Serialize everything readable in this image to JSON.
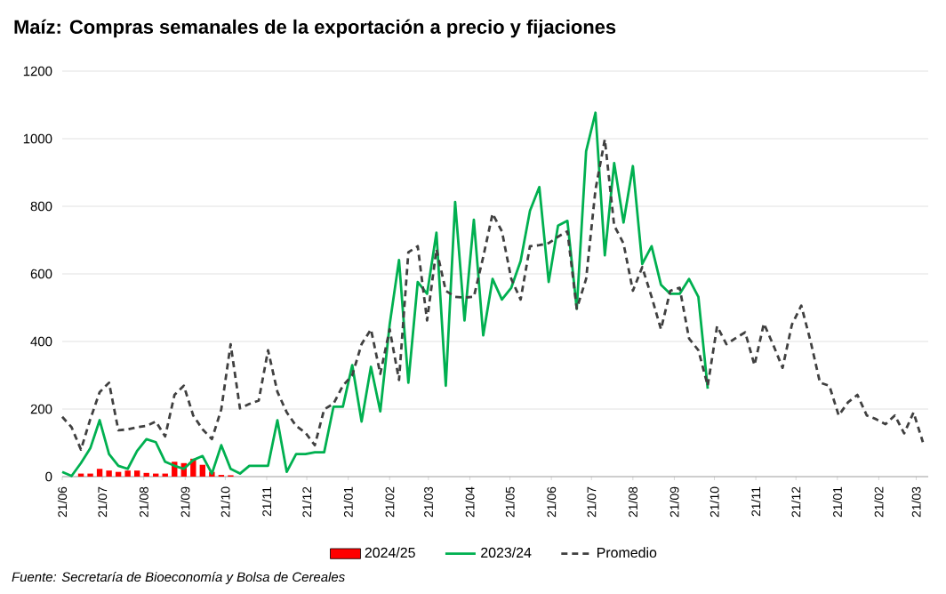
{
  "chart_data": {
    "type": "line",
    "title": "Maíz: Compras semanales de la exportación a precio y fijaciones",
    "annotations": [
      "Fuente: Secretaría de Bioeconomía y Bolsa de Cereales"
    ],
    "x": [
      "2023-06-21",
      "2023-06-28",
      "2023-07-05",
      "2023-07-12",
      "2023-07-19",
      "2023-07-26",
      "2023-08-02",
      "2023-08-09",
      "2023-08-16",
      "2023-08-23",
      "2023-08-30",
      "2023-09-06",
      "2023-09-13",
      "2023-09-20",
      "2023-09-27",
      "2023-10-04",
      "2023-10-11",
      "2023-10-18",
      "2023-10-25",
      "2023-11-01",
      "2023-11-08",
      "2023-11-15",
      "2023-11-22",
      "2023-11-29",
      "2023-12-06",
      "2023-12-13",
      "2023-12-20",
      "2023-12-27",
      "2024-01-03",
      "2024-01-10",
      "2024-01-17",
      "2024-01-24",
      "2024-01-31",
      "2024-02-07",
      "2024-02-14",
      "2024-02-21",
      "2024-02-28",
      "2024-03-06",
      "2024-03-13",
      "2024-03-20",
      "2024-03-27",
      "2024-04-03",
      "2024-04-10",
      "2024-04-17",
      "2024-04-24",
      "2024-05-01",
      "2024-05-08",
      "2024-05-15",
      "2024-05-22",
      "2024-05-29",
      "2024-06-05",
      "2024-06-12",
      "2024-06-19",
      "2024-06-26",
      "2024-07-03",
      "2024-07-10",
      "2024-07-17",
      "2024-07-24",
      "2024-07-31",
      "2024-08-07",
      "2024-08-14",
      "2024-08-21",
      "2024-08-28",
      "2024-09-04",
      "2024-09-11",
      "2024-09-18",
      "2024-09-25",
      "2024-10-02",
      "2024-10-09",
      "2024-10-16",
      "2024-10-23",
      "2024-10-30",
      "2024-11-06",
      "2024-11-13",
      "2024-11-20",
      "2024-11-27",
      "2024-12-04",
      "2024-12-11",
      "2024-12-18",
      "2024-12-25",
      "2025-01-01",
      "2025-01-08",
      "2025-01-15",
      "2025-01-22",
      "2025-01-29",
      "2025-02-05",
      "2025-02-12",
      "2025-02-19",
      "2025-02-26",
      "2025-03-05",
      "2025-03-12",
      "2025-03-19",
      "2025-03-26"
    ],
    "series": [
      {
        "name": "2024/25",
        "type": "bar",
        "color": "#ff0000",
        "x": [
          "2023-07-05",
          "2023-07-12",
          "2023-07-19",
          "2023-07-26",
          "2023-08-02",
          "2023-08-09",
          "2023-08-16",
          "2023-08-23",
          "2023-08-30",
          "2023-09-06",
          "2023-09-13",
          "2023-09-20",
          "2023-09-27",
          "2023-10-04",
          "2023-10-11",
          "2023-10-18",
          "2023-10-25"
        ],
        "values": [
          9,
          9,
          23,
          18,
          14,
          18,
          18,
          11,
          9,
          9,
          44,
          40,
          53,
          35,
          14,
          5,
          4
        ]
      },
      {
        "name": "2023/24",
        "color": "#00b050",
        "line_style": "solid",
        "x": [
          "2023-06-21",
          "2023-06-28",
          "2023-07-05",
          "2023-07-12",
          "2023-07-19",
          "2023-07-26",
          "2023-08-02",
          "2023-08-09",
          "2023-08-16",
          "2023-08-23",
          "2023-08-30",
          "2023-09-06",
          "2023-09-13",
          "2023-09-20",
          "2023-09-27",
          "2023-10-04",
          "2023-10-11",
          "2023-10-18",
          "2023-10-25",
          "2023-11-01",
          "2023-11-08",
          "2023-11-15",
          "2023-11-22",
          "2023-11-29",
          "2023-12-06",
          "2023-12-13",
          "2023-12-20",
          "2023-12-27",
          "2024-01-03",
          "2024-01-10",
          "2024-01-17",
          "2024-01-24",
          "2024-01-31",
          "2024-02-07",
          "2024-02-14",
          "2024-02-21",
          "2024-02-28",
          "2024-03-06",
          "2024-03-13",
          "2024-03-20",
          "2024-03-27",
          "2024-04-03",
          "2024-04-10",
          "2024-04-17",
          "2024-04-24",
          "2024-05-01",
          "2024-05-08",
          "2024-05-15",
          "2024-05-22",
          "2024-05-29",
          "2024-06-05",
          "2024-06-12",
          "2024-06-19",
          "2024-06-26",
          "2024-07-03",
          "2024-07-10",
          "2024-07-17",
          "2024-07-24",
          "2024-07-31",
          "2024-08-07",
          "2024-08-14",
          "2024-08-21",
          "2024-08-28",
          "2024-09-04",
          "2024-09-11",
          "2024-09-18",
          "2024-09-25",
          "2024-10-02",
          "2024-10-09",
          "2024-10-16"
        ],
        "values": [
          14,
          2,
          40,
          84,
          167,
          67,
          32,
          23,
          76,
          111,
          102,
          44,
          32,
          23,
          49,
          61,
          9,
          93,
          23,
          9,
          32,
          32,
          32,
          167,
          14,
          67,
          67,
          72,
          72,
          207,
          207,
          330,
          163,
          325,
          193,
          450,
          641,
          278,
          576,
          541,
          722,
          269,
          813,
          462,
          760,
          418,
          585,
          524,
          559,
          638,
          787,
          857,
          576,
          743,
          757,
          497,
          963,
          1077,
          655,
          928,
          752,
          919,
          629,
          682,
          568,
          541,
          541,
          585,
          532,
          260
        ]
      },
      {
        "name": "Promedio",
        "color": "#404040",
        "line_style": "dashed",
        "values": [
          177,
          146,
          80,
          170,
          250,
          278,
          137,
          140,
          146,
          150,
          163,
          119,
          242,
          269,
          181,
          140,
          111,
          199,
          392,
          202,
          215,
          225,
          374,
          251,
          190,
          150,
          130,
          93,
          199,
          216,
          269,
          300,
          392,
          436,
          304,
          436,
          286,
          664,
          682,
          462,
          673,
          550,
          532,
          530,
          532,
          650,
          778,
          726,
          585,
          524,
          682,
          685,
          691,
          710,
          726,
          497,
          585,
          849,
          998,
          743,
          690,
          550,
          620,
          532,
          436,
          550,
          559,
          409,
          374,
          269,
          445,
          392,
          410,
          427,
          330,
          453,
          390,
          322,
          450,
          506,
          400,
          278,
          269,
          181,
          220,
          242,
          181,
          170,
          155,
          181,
          128,
          190,
          102
        ]
      }
    ],
    "xlim": [
      "2023-06-21",
      "2025-03-30"
    ],
    "xticks": [
      {
        "value": "2023-06-21",
        "label": "21/06"
      },
      {
        "value": "2023-07-21",
        "label": "21/07"
      },
      {
        "value": "2023-08-21",
        "label": "21/08"
      },
      {
        "value": "2023-09-21",
        "label": "21/09"
      },
      {
        "value": "2023-10-21",
        "label": "21/10"
      },
      {
        "value": "2023-11-21",
        "label": "21/11"
      },
      {
        "value": "2023-12-21",
        "label": "21/12"
      },
      {
        "value": "2024-01-21",
        "label": "21/01"
      },
      {
        "value": "2024-02-21",
        "label": "21/02"
      },
      {
        "value": "2024-03-21",
        "label": "21/03"
      },
      {
        "value": "2024-04-21",
        "label": "21/04"
      },
      {
        "value": "2024-05-21",
        "label": "21/05"
      },
      {
        "value": "2024-06-21",
        "label": "21/06"
      },
      {
        "value": "2024-07-21",
        "label": "21/07"
      },
      {
        "value": "2024-08-21",
        "label": "21/08"
      },
      {
        "value": "2024-09-21",
        "label": "21/09"
      },
      {
        "value": "2024-10-21",
        "label": "21/10"
      },
      {
        "value": "2024-11-21",
        "label": "21/11"
      },
      {
        "value": "2024-12-21",
        "label": "21/12"
      },
      {
        "value": "2025-01-21",
        "label": "21/01"
      },
      {
        "value": "2025-02-21",
        "label": "21/02"
      },
      {
        "value": "2025-03-21",
        "label": "21/03"
      }
    ],
    "ylim": [
      0,
      1200
    ],
    "yticks": [
      0,
      200,
      400,
      600,
      800,
      1000,
      1200
    ],
    "grid": "y",
    "legend": "bottom",
    "marker": "none"
  }
}
